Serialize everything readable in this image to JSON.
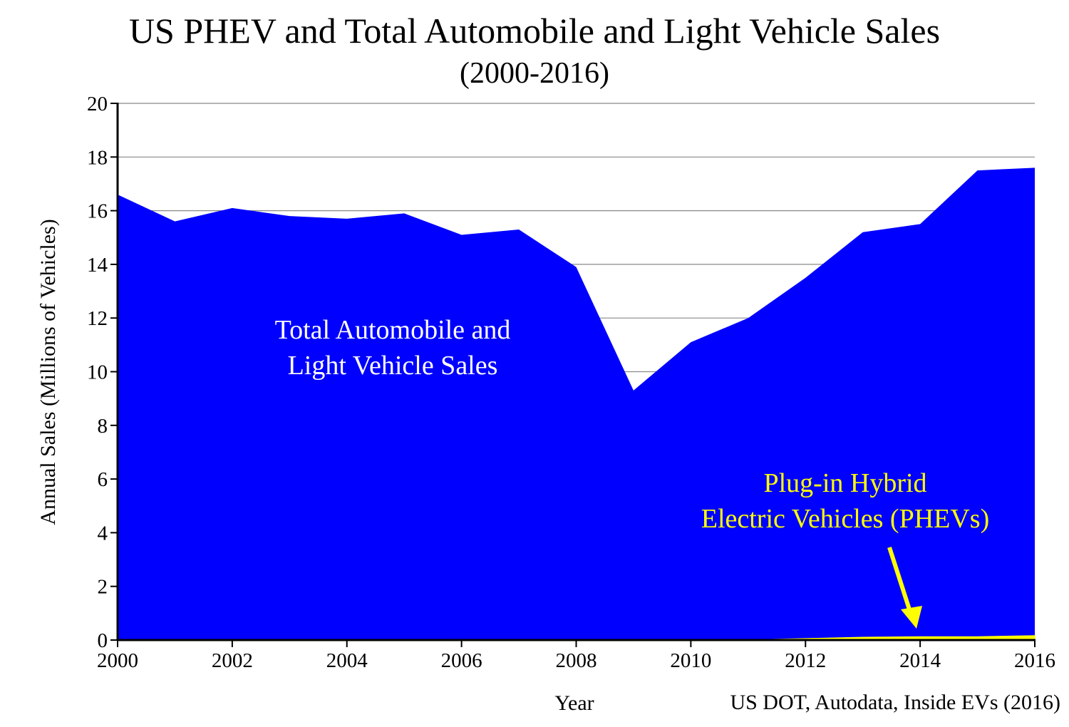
{
  "title": "US PHEV and Total Automobile and Light Vehicle Sales",
  "subtitle": "(2000-2016)",
  "source": "US DOT, Autodata, Inside EVs (2016)",
  "colors": {
    "total": "#0000ff",
    "phev": "#ffff00",
    "grid": "#888888",
    "axis": "#000000"
  },
  "chart_data": {
    "type": "area",
    "title": "US PHEV and Total Automobile and Light Vehicle Sales",
    "subtitle": "(2000-2016)",
    "xlabel": "Year",
    "ylabel": "Annual Sales (Millions of Vehicles)",
    "xlim": [
      2000,
      2016
    ],
    "ylim": [
      0,
      20
    ],
    "x_ticks": [
      2000,
      2002,
      2004,
      2006,
      2008,
      2010,
      2012,
      2014,
      2016
    ],
    "y_ticks": [
      0,
      2,
      4,
      6,
      8,
      10,
      12,
      14,
      16,
      18,
      20
    ],
    "grid": true,
    "x": [
      2000,
      2001,
      2002,
      2003,
      2004,
      2005,
      2006,
      2007,
      2008,
      2009,
      2010,
      2011,
      2012,
      2013,
      2014,
      2015,
      2016
    ],
    "series": [
      {
        "name": "Total Automobile and Light Vehicle Sales",
        "values": [
          16.6,
          15.6,
          16.1,
          15.8,
          15.7,
          15.9,
          15.1,
          15.3,
          13.9,
          9.3,
          11.1,
          12.0,
          13.5,
          15.2,
          15.5,
          17.5,
          17.6
        ]
      },
      {
        "name": "Plug-in Hybrid Electric Vehicles (PHEVs)",
        "values": [
          0,
          0,
          0,
          0,
          0,
          0,
          0,
          0,
          0,
          0,
          0.0,
          0.0,
          0.05,
          0.1,
          0.12,
          0.12,
          0.16
        ]
      }
    ],
    "annotations": [
      {
        "text_lines": [
          "Total Automobile and",
          "Light Vehicle Sales"
        ],
        "color": "#ffffff"
      },
      {
        "text_lines": [
          "Plug-in Hybrid",
          "Electric Vehicles (PHEVs)"
        ],
        "color": "#ffff00"
      }
    ]
  }
}
